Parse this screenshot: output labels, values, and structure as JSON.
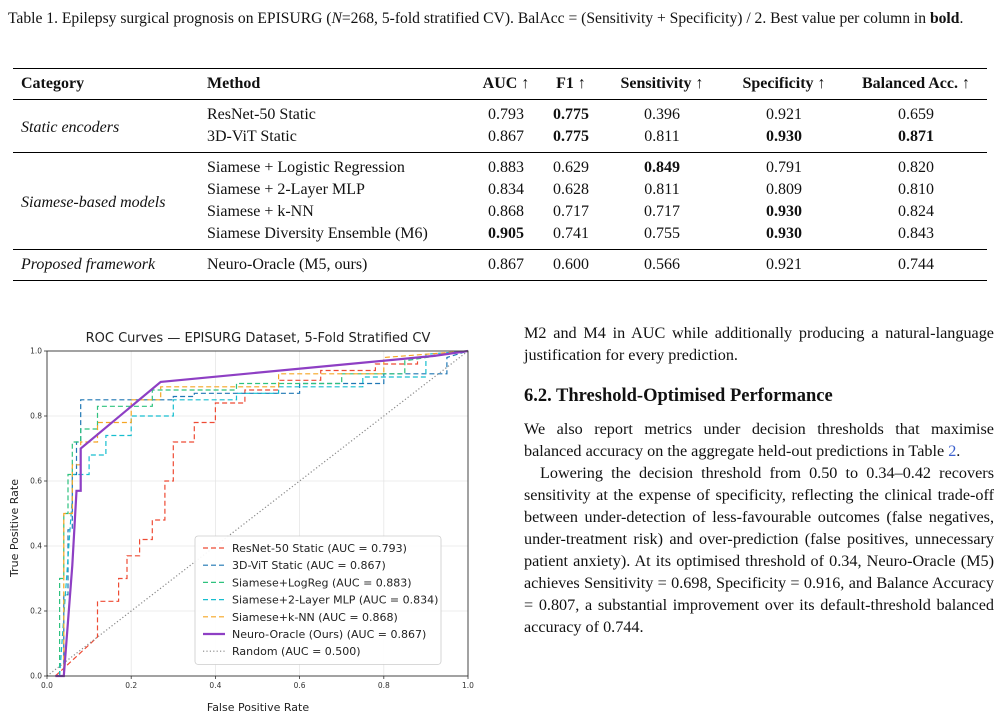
{
  "caption": {
    "prefix": "Table 1. Epilepsy surgical prognosis on EPISURG (",
    "n_var": "N",
    "n_rest": "=268, 5-fold stratified CV). BalAcc = (Sensitivity + Specificity) / 2. Best value per column in ",
    "bold_word": "bold",
    "end": "."
  },
  "table": {
    "headers": [
      "Category",
      "Method",
      "AUC ↑",
      "F1 ↑",
      "Sensitivity ↑",
      "Specificity ↑",
      "Balanced Acc. ↑"
    ],
    "groups": [
      {
        "category": "Static encoders",
        "rows": [
          {
            "method": "ResNet-50 Static",
            "values": [
              "0.793",
              "0.775",
              "0.396",
              "0.921",
              "0.659"
            ],
            "bold": [
              false,
              true,
              false,
              false,
              false
            ]
          },
          {
            "method": "3D-ViT Static",
            "values": [
              "0.867",
              "0.775",
              "0.811",
              "0.930",
              "0.871"
            ],
            "bold": [
              false,
              true,
              false,
              true,
              true
            ]
          }
        ]
      },
      {
        "category": "Siamese-based models",
        "rows": [
          {
            "method": "Siamese + Logistic Regression",
            "values": [
              "0.883",
              "0.629",
              "0.849",
              "0.791",
              "0.820"
            ],
            "bold": [
              false,
              false,
              true,
              false,
              false
            ]
          },
          {
            "method": "Siamese + 2-Layer MLP",
            "values": [
              "0.834",
              "0.628",
              "0.811",
              "0.809",
              "0.810"
            ],
            "bold": [
              false,
              false,
              false,
              false,
              false
            ]
          },
          {
            "method": "Siamese + k-NN",
            "values": [
              "0.868",
              "0.717",
              "0.717",
              "0.930",
              "0.824"
            ],
            "bold": [
              false,
              false,
              false,
              true,
              false
            ]
          },
          {
            "method": "Siamese Diversity Ensemble (M6)",
            "values": [
              "0.905",
              "0.741",
              "0.755",
              "0.930",
              "0.843"
            ],
            "bold": [
              true,
              false,
              false,
              true,
              false
            ]
          }
        ]
      },
      {
        "category": "Proposed framework",
        "rows": [
          {
            "method": "Neuro-Oracle (M5, ours)",
            "values": [
              "0.867",
              "0.600",
              "0.566",
              "0.921",
              "0.744"
            ],
            "bold": [
              false,
              false,
              false,
              false,
              false
            ]
          }
        ]
      }
    ]
  },
  "chart_data": {
    "type": "line",
    "title": "ROC Curves — EPISURG Dataset, 5-Fold Stratified CV",
    "xlabel": "False Positive Rate",
    "ylabel": "True Positive Rate",
    "xlim": [
      0,
      1
    ],
    "ylim": [
      0,
      1
    ],
    "xticks": [
      "0.0",
      "0.2",
      "0.4",
      "0.6",
      "0.8",
      "1.0"
    ],
    "yticks": [
      "0.0",
      "0.2",
      "0.4",
      "0.6",
      "0.8",
      "1.0"
    ],
    "grid": true,
    "legend_position": "lower-right",
    "series": [
      {
        "name": "ResNet-50 Static  (AUC = 0.793)",
        "color": "#ee4b34",
        "dash": "dashed",
        "x": [
          0.02,
          0.12,
          0.12,
          0.17,
          0.17,
          0.19,
          0.19,
          0.22,
          0.22,
          0.25,
          0.25,
          0.28,
          0.28,
          0.3,
          0.3,
          0.35,
          0.35,
          0.4,
          0.4,
          0.47,
          0.47,
          0.55,
          0.55,
          0.65,
          0.65,
          0.78,
          0.78,
          0.88,
          0.88,
          1.0
        ],
        "y": [
          0.0,
          0.12,
          0.23,
          0.23,
          0.3,
          0.3,
          0.37,
          0.37,
          0.42,
          0.42,
          0.48,
          0.48,
          0.6,
          0.6,
          0.72,
          0.72,
          0.78,
          0.78,
          0.84,
          0.84,
          0.88,
          0.88,
          0.91,
          0.91,
          0.94,
          0.94,
          0.96,
          0.96,
          0.98,
          1.0
        ]
      },
      {
        "name": "3D-ViT Static  (AUC = 0.867)",
        "color": "#1f77b4",
        "dash": "dashed",
        "x": [
          0.03,
          0.04,
          0.04,
          0.05,
          0.05,
          0.06,
          0.06,
          0.07,
          0.07,
          0.08,
          0.08,
          0.3,
          0.3,
          0.35,
          0.35,
          0.6,
          0.6,
          0.8,
          0.8,
          0.95,
          0.95,
          1.0
        ],
        "y": [
          0.0,
          0.0,
          0.25,
          0.25,
          0.45,
          0.45,
          0.62,
          0.62,
          0.72,
          0.72,
          0.85,
          0.85,
          0.86,
          0.86,
          0.87,
          0.87,
          0.9,
          0.9,
          0.93,
          0.93,
          0.98,
          1.0
        ]
      },
      {
        "name": "Siamese+LogReg  (AUC = 0.883)",
        "color": "#2ec27e",
        "dash": "dashed",
        "x": [
          0.03,
          0.03,
          0.04,
          0.04,
          0.05,
          0.05,
          0.06,
          0.06,
          0.08,
          0.08,
          0.12,
          0.12,
          0.25,
          0.25,
          0.45,
          0.45,
          0.7,
          0.7,
          0.85,
          0.85,
          1.0
        ],
        "y": [
          0.0,
          0.3,
          0.3,
          0.5,
          0.5,
          0.62,
          0.62,
          0.72,
          0.72,
          0.76,
          0.76,
          0.83,
          0.83,
          0.88,
          0.88,
          0.9,
          0.9,
          0.93,
          0.93,
          0.97,
          1.0
        ]
      },
      {
        "name": "Siamese+2-Layer MLP  (AUC = 0.834)",
        "color": "#17becf",
        "dash": "dashed",
        "x": [
          0.03,
          0.06,
          0.06,
          0.1,
          0.1,
          0.14,
          0.14,
          0.2,
          0.2,
          0.3,
          0.3,
          0.45,
          0.45,
          0.55,
          0.55,
          0.75,
          0.75,
          0.9,
          0.9,
          1.0
        ],
        "y": [
          0.0,
          0.55,
          0.62,
          0.62,
          0.68,
          0.68,
          0.74,
          0.74,
          0.8,
          0.8,
          0.85,
          0.85,
          0.87,
          0.87,
          0.89,
          0.89,
          0.92,
          0.92,
          0.99,
          1.0
        ]
      },
      {
        "name": "Siamese+k-NN  (AUC = 0.868)",
        "color": "#f5a524",
        "dash": "dashed",
        "x": [
          0.02,
          0.04,
          0.04,
          0.06,
          0.06,
          0.08,
          0.08,
          0.12,
          0.12,
          0.2,
          0.2,
          0.27,
          0.27,
          0.55,
          0.55,
          0.8,
          0.8,
          1.0
        ],
        "y": [
          0.0,
          0.0,
          0.5,
          0.5,
          0.65,
          0.65,
          0.72,
          0.72,
          0.78,
          0.78,
          0.85,
          0.85,
          0.89,
          0.89,
          0.93,
          0.93,
          0.98,
          1.0
        ]
      },
      {
        "name": "Neuro-Oracle (Ours)  (AUC = 0.867)",
        "color": "#8e3fc4",
        "dash": "solid",
        "x": [
          0.02,
          0.04,
          0.06,
          0.07,
          0.07,
          0.08,
          0.08,
          0.27,
          0.92,
          1.0
        ],
        "y": [
          0.0,
          0.0,
          0.34,
          0.57,
          0.57,
          0.57,
          0.7,
          0.905,
          0.985,
          1.0
        ]
      },
      {
        "name": "Random  (AUC = 0.500)",
        "color": "#888888",
        "dash": "dotted",
        "x": [
          0,
          1
        ],
        "y": [
          0,
          1
        ]
      }
    ]
  },
  "body": {
    "para1": "M2 and M4 in AUC while additionally producing a natural-language justification for every prediction.",
    "heading": "6.2. Threshold-Optimised Performance",
    "para2_a": "We also report metrics under decision thresholds that maximise balanced accuracy on the aggregate held-out predictions in Table ",
    "para2_ref": "2",
    "para2_b": ".",
    "para3": "Lowering the decision threshold from 0.50 to 0.34–0.42 recovers sensitivity at the expense of specificity, reflecting the clinical trade-off between under-detection of less-favourable outcomes (false negatives, under-treatment risk) and over-prediction (false positives, unnecessary patient anxiety). At its optimised threshold of 0.34, Neuro-Oracle (M5) achieves Sensitivity = 0.698, Specificity = 0.916, and Balance Accuracy = 0.807, a substantial improvement over its default-threshold balanced accuracy of 0.744."
  }
}
